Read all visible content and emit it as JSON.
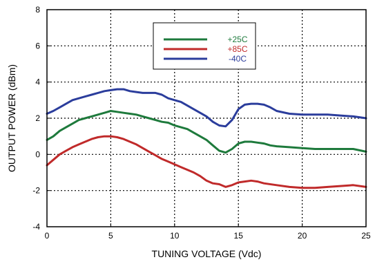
{
  "chart_data": {
    "type": "line",
    "xlabel": "TUNING VOLTAGE (Vdc)",
    "ylabel": "OUTPUT POWER (dBm)",
    "xlim": [
      0,
      25
    ],
    "ylim": [
      -4,
      8
    ],
    "xticks": [
      0,
      5,
      10,
      15,
      20,
      25
    ],
    "yticks": [
      -4,
      -2,
      0,
      2,
      4,
      6,
      8
    ],
    "grid": true,
    "legend_position": "top-center",
    "series": [
      {
        "name": "+25C",
        "color": "#1e7a3c",
        "x": [
          0,
          0.5,
          1,
          1.5,
          2,
          2.5,
          3,
          3.5,
          4,
          4.5,
          5,
          5.5,
          6,
          6.5,
          7,
          7.5,
          8,
          8.5,
          9,
          9.5,
          10,
          10.5,
          11,
          11.5,
          12,
          12.5,
          13,
          13.5,
          14,
          14.5,
          15,
          15.5,
          16,
          16.5,
          17,
          17.5,
          18,
          19,
          20,
          21,
          22,
          23,
          24,
          25
        ],
        "y": [
          0.8,
          1.0,
          1.3,
          1.5,
          1.7,
          1.9,
          2.0,
          2.1,
          2.2,
          2.3,
          2.4,
          2.35,
          2.3,
          2.25,
          2.2,
          2.1,
          2.0,
          1.9,
          1.8,
          1.75,
          1.6,
          1.5,
          1.4,
          1.2,
          1.0,
          0.8,
          0.5,
          0.2,
          0.1,
          0.3,
          0.6,
          0.7,
          0.7,
          0.65,
          0.6,
          0.5,
          0.45,
          0.4,
          0.35,
          0.3,
          0.3,
          0.3,
          0.3,
          0.15
        ]
      },
      {
        "name": "+85C",
        "color": "#c02a2a",
        "x": [
          0,
          0.5,
          1,
          1.5,
          2,
          2.5,
          3,
          3.5,
          4,
          4.5,
          5,
          5.5,
          6,
          6.5,
          7,
          7.5,
          8,
          8.5,
          9,
          9.5,
          10,
          10.5,
          11,
          11.5,
          12,
          12.5,
          13,
          13.5,
          14,
          14.5,
          15,
          15.5,
          16,
          16.5,
          17,
          18,
          19,
          20,
          21,
          22,
          23,
          24,
          25
        ],
        "y": [
          -0.6,
          -0.3,
          0.0,
          0.2,
          0.4,
          0.55,
          0.7,
          0.85,
          0.95,
          1.0,
          1.0,
          0.95,
          0.85,
          0.7,
          0.55,
          0.35,
          0.15,
          -0.05,
          -0.25,
          -0.4,
          -0.55,
          -0.7,
          -0.85,
          -1.0,
          -1.2,
          -1.45,
          -1.6,
          -1.65,
          -1.8,
          -1.7,
          -1.55,
          -1.5,
          -1.45,
          -1.5,
          -1.6,
          -1.7,
          -1.8,
          -1.85,
          -1.85,
          -1.8,
          -1.75,
          -1.7,
          -1.8
        ]
      },
      {
        "name": "-40C",
        "color": "#2b3d9c",
        "x": [
          0,
          0.5,
          1,
          1.5,
          2,
          2.5,
          3,
          3.5,
          4,
          4.5,
          5,
          5.5,
          6,
          6.5,
          7,
          7.5,
          8,
          8.5,
          9,
          9.5,
          10,
          10.5,
          11,
          11.5,
          12,
          12.5,
          13,
          13.5,
          14,
          14.5,
          15,
          15.5,
          16,
          16.5,
          17,
          17.5,
          18,
          19,
          20,
          21,
          22,
          23,
          24,
          25
        ],
        "y": [
          2.25,
          2.4,
          2.6,
          2.8,
          3.0,
          3.1,
          3.2,
          3.3,
          3.4,
          3.5,
          3.55,
          3.6,
          3.6,
          3.5,
          3.45,
          3.4,
          3.4,
          3.4,
          3.3,
          3.1,
          3.0,
          2.9,
          2.7,
          2.5,
          2.3,
          2.1,
          1.8,
          1.6,
          1.55,
          1.9,
          2.5,
          2.75,
          2.8,
          2.8,
          2.75,
          2.6,
          2.4,
          2.25,
          2.2,
          2.2,
          2.2,
          2.15,
          2.1,
          2.0
        ]
      }
    ]
  }
}
